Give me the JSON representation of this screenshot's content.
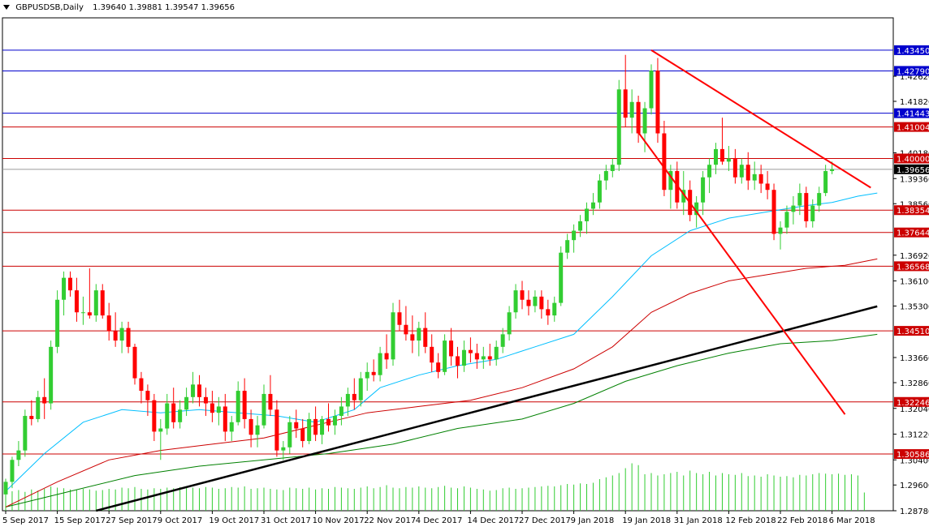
{
  "header": {
    "symbol": "GBPUSDSB,Daily",
    "ohlc": "1.39640 1.39881 1.39547 1.39656"
  },
  "chart_data": {
    "type": "candlestick",
    "symbol": "GBPUSDSB",
    "timeframe": "Daily",
    "ylim": [
      1.2878,
      1.4448
    ],
    "colors": {
      "bull": "#32cd32",
      "bear": "#ff0000",
      "ma_fast": "#00bfff",
      "ma_mid": "#cc0000",
      "ma_slow": "#008000",
      "volume": "#32cd32",
      "hline_blue": "#0000cd",
      "hline_red": "#cc0000",
      "trendline": "#000000",
      "channel": "#ff0000"
    },
    "y_ticks": [
      "1.42620",
      "1.41820",
      "1.40180",
      "1.39360",
      "1.38560",
      "1.36920",
      "1.36100",
      "1.35300",
      "1.33660",
      "1.32860",
      "1.32040",
      "1.31220",
      "1.30400",
      "1.29600",
      "1.28780"
    ],
    "x_ticks": [
      {
        "label": "5 Sep 2017",
        "i": 0
      },
      {
        "label": "15 Sep 2017",
        "i": 8
      },
      {
        "label": "27 Sep 2017",
        "i": 16
      },
      {
        "label": "9 Oct 2017",
        "i": 24
      },
      {
        "label": "19 Oct 2017",
        "i": 32
      },
      {
        "label": "31 Oct 2017",
        "i": 40
      },
      {
        "label": "10 Nov 2017",
        "i": 48
      },
      {
        "label": "22 Nov 2017",
        "i": 56
      },
      {
        "label": "4 Dec 2017",
        "i": 64
      },
      {
        "label": "14 Dec 2017",
        "i": 72
      },
      {
        "label": "27 Dec 2017",
        "i": 80
      },
      {
        "label": "9 Jan 2018",
        "i": 88
      },
      {
        "label": "19 Jan 2018",
        "i": 96
      },
      {
        "label": "31 Jan 2018",
        "i": 104
      },
      {
        "label": "12 Feb 2018",
        "i": 112
      },
      {
        "label": "22 Feb 2018",
        "i": 120
      },
      {
        "label": "6 Mar 2018",
        "i": 128
      }
    ],
    "levels": [
      {
        "value": 1.4345,
        "label": "1.43450",
        "kind": "blue"
      },
      {
        "value": 1.4279,
        "label": "1.42790",
        "kind": "blue"
      },
      {
        "value": 1.41443,
        "label": "1.41443",
        "kind": "blue"
      },
      {
        "value": 1.41004,
        "label": "1.41004",
        "kind": "red"
      },
      {
        "value": 1.4,
        "label": "1.40000",
        "kind": "red"
      },
      {
        "value": 1.38354,
        "label": "1.38354",
        "kind": "red"
      },
      {
        "value": 1.37644,
        "label": "1.37644",
        "kind": "red"
      },
      {
        "value": 1.36568,
        "label": "1.36568",
        "kind": "red"
      },
      {
        "value": 1.3451,
        "label": "1.34510",
        "kind": "red"
      },
      {
        "value": 1.32246,
        "label": "1.32246",
        "kind": "red"
      },
      {
        "value": 1.30586,
        "label": "1.30586",
        "kind": "red"
      }
    ],
    "current_price": {
      "value": 1.39656,
      "label": "1.39656"
    },
    "trendlines": [
      {
        "name": "uptrend",
        "kind": "trendline",
        "from": [
          14,
          1.2878
        ],
        "to": [
          135,
          1.3529
        ]
      },
      {
        "name": "resistance",
        "kind": "channel",
        "from": [
          100,
          1.4345
        ],
        "to": [
          134,
          1.3907
        ]
      },
      {
        "name": "channel-lower",
        "kind": "channel",
        "from": [
          98,
          1.4083
        ],
        "to": [
          130,
          1.3185
        ]
      }
    ],
    "candles": [
      [
        1.293,
        1.298,
        1.291,
        1.297
      ],
      [
        1.297,
        1.305,
        1.295,
        1.304
      ],
      [
        1.304,
        1.31,
        1.302,
        1.307
      ],
      [
        1.307,
        1.32,
        1.305,
        1.318
      ],
      [
        1.318,
        1.323,
        1.315,
        1.317
      ],
      [
        1.317,
        1.326,
        1.316,
        1.324
      ],
      [
        1.324,
        1.33,
        1.317,
        1.322
      ],
      [
        1.322,
        1.342,
        1.32,
        1.34
      ],
      [
        1.34,
        1.358,
        1.338,
        1.355
      ],
      [
        1.355,
        1.364,
        1.35,
        1.362
      ],
      [
        1.362,
        1.364,
        1.356,
        1.358
      ],
      [
        1.358,
        1.362,
        1.348,
        1.351
      ],
      [
        1.351,
        1.356,
        1.347,
        1.351
      ],
      [
        1.351,
        1.365,
        1.349,
        1.35
      ],
      [
        1.35,
        1.36,
        1.348,
        1.358
      ],
      [
        1.358,
        1.36,
        1.349,
        1.35
      ],
      [
        1.35,
        1.354,
        1.342,
        1.345
      ],
      [
        1.345,
        1.351,
        1.34,
        1.342
      ],
      [
        1.342,
        1.348,
        1.338,
        1.346
      ],
      [
        1.346,
        1.348,
        1.338,
        1.34
      ],
      [
        1.34,
        1.341,
        1.328,
        1.33
      ],
      [
        1.33,
        1.332,
        1.322,
        1.326
      ],
      [
        1.326,
        1.328,
        1.318,
        1.323
      ],
      [
        1.323,
        1.325,
        1.31,
        1.313
      ],
      [
        1.313,
        1.317,
        1.304,
        1.314
      ],
      [
        1.314,
        1.325,
        1.312,
        1.322
      ],
      [
        1.322,
        1.327,
        1.314,
        1.316
      ],
      [
        1.316,
        1.323,
        1.314,
        1.32
      ],
      [
        1.32,
        1.327,
        1.318,
        1.324
      ],
      [
        1.324,
        1.332,
        1.322,
        1.328
      ],
      [
        1.328,
        1.331,
        1.321,
        1.324
      ],
      [
        1.324,
        1.327,
        1.318,
        1.322
      ],
      [
        1.322,
        1.326,
        1.316,
        1.319
      ],
      [
        1.319,
        1.324,
        1.315,
        1.321
      ],
      [
        1.321,
        1.325,
        1.31,
        1.313
      ],
      [
        1.313,
        1.318,
        1.31,
        1.316
      ],
      [
        1.316,
        1.329,
        1.315,
        1.326
      ],
      [
        1.326,
        1.33,
        1.314,
        1.317
      ],
      [
        1.317,
        1.32,
        1.308,
        1.312
      ],
      [
        1.312,
        1.318,
        1.308,
        1.315
      ],
      [
        1.315,
        1.328,
        1.314,
        1.325
      ],
      [
        1.325,
        1.331,
        1.318,
        1.32
      ],
      [
        1.32,
        1.323,
        1.305,
        1.307
      ],
      [
        1.307,
        1.31,
        1.304,
        1.308
      ],
      [
        1.308,
        1.318,
        1.306,
        1.316
      ],
      [
        1.316,
        1.32,
        1.311,
        1.314
      ],
      [
        1.314,
        1.317,
        1.308,
        1.31
      ],
      [
        1.31,
        1.319,
        1.309,
        1.317
      ],
      [
        1.317,
        1.321,
        1.31,
        1.312
      ],
      [
        1.312,
        1.318,
        1.309,
        1.317
      ],
      [
        1.317,
        1.322,
        1.313,
        1.315
      ],
      [
        1.315,
        1.32,
        1.312,
        1.318
      ],
      [
        1.318,
        1.324,
        1.315,
        1.321
      ],
      [
        1.321,
        1.327,
        1.318,
        1.325
      ],
      [
        1.325,
        1.33,
        1.32,
        1.323
      ],
      [
        1.323,
        1.332,
        1.321,
        1.33
      ],
      [
        1.33,
        1.335,
        1.326,
        1.332
      ],
      [
        1.332,
        1.336,
        1.329,
        1.331
      ],
      [
        1.331,
        1.34,
        1.329,
        1.338
      ],
      [
        1.338,
        1.344,
        1.333,
        1.336
      ],
      [
        1.336,
        1.354,
        1.334,
        1.351
      ],
      [
        1.351,
        1.355,
        1.345,
        1.347
      ],
      [
        1.347,
        1.353,
        1.342,
        1.344
      ],
      [
        1.344,
        1.35,
        1.338,
        1.342
      ],
      [
        1.342,
        1.348,
        1.337,
        1.346
      ],
      [
        1.346,
        1.351,
        1.338,
        1.34
      ],
      [
        1.34,
        1.344,
        1.332,
        1.335
      ],
      [
        1.335,
        1.338,
        1.33,
        1.332
      ],
      [
        1.332,
        1.344,
        1.331,
        1.342
      ],
      [
        1.342,
        1.346,
        1.334,
        1.337
      ],
      [
        1.337,
        1.34,
        1.33,
        1.334
      ],
      [
        1.334,
        1.342,
        1.332,
        1.339
      ],
      [
        1.339,
        1.343,
        1.335,
        1.338
      ],
      [
        1.338,
        1.341,
        1.333,
        1.336
      ],
      [
        1.336,
        1.34,
        1.333,
        1.337
      ],
      [
        1.337,
        1.341,
        1.334,
        1.336
      ],
      [
        1.336,
        1.342,
        1.334,
        1.34
      ],
      [
        1.34,
        1.346,
        1.338,
        1.344
      ],
      [
        1.344,
        1.353,
        1.342,
        1.351
      ],
      [
        1.351,
        1.36,
        1.349,
        1.358
      ],
      [
        1.358,
        1.361,
        1.352,
        1.355
      ],
      [
        1.355,
        1.358,
        1.35,
        1.353
      ],
      [
        1.353,
        1.358,
        1.351,
        1.356
      ],
      [
        1.356,
        1.358,
        1.349,
        1.352
      ],
      [
        1.352,
        1.355,
        1.347,
        1.35
      ],
      [
        1.35,
        1.356,
        1.348,
        1.354
      ],
      [
        1.354,
        1.372,
        1.353,
        1.37
      ],
      [
        1.37,
        1.376,
        1.368,
        1.374
      ],
      [
        1.374,
        1.379,
        1.37,
        1.377
      ],
      [
        1.377,
        1.382,
        1.375,
        1.38
      ],
      [
        1.38,
        1.386,
        1.376,
        1.384
      ],
      [
        1.384,
        1.389,
        1.382,
        1.386
      ],
      [
        1.386,
        1.395,
        1.384,
        1.393
      ],
      [
        1.393,
        1.398,
        1.39,
        1.396
      ],
      [
        1.396,
        1.4,
        1.394,
        1.398
      ],
      [
        1.398,
        1.425,
        1.396,
        1.422
      ],
      [
        1.422,
        1.433,
        1.41,
        1.413
      ],
      [
        1.413,
        1.422,
        1.408,
        1.418
      ],
      [
        1.418,
        1.42,
        1.405,
        1.408
      ],
      [
        1.408,
        1.418,
        1.402,
        1.416
      ],
      [
        1.416,
        1.43,
        1.414,
        1.428
      ],
      [
        1.428,
        1.432,
        1.405,
        1.408
      ],
      [
        1.408,
        1.412,
        1.388,
        1.39
      ],
      [
        1.39,
        1.398,
        1.384,
        1.396
      ],
      [
        1.396,
        1.399,
        1.384,
        1.386
      ],
      [
        1.386,
        1.396,
        1.382,
        1.39
      ],
      [
        1.39,
        1.393,
        1.38,
        1.382
      ],
      [
        1.382,
        1.388,
        1.378,
        1.386
      ],
      [
        1.386,
        1.396,
        1.382,
        1.394
      ],
      [
        1.394,
        1.4,
        1.389,
        1.398
      ],
      [
        1.398,
        1.405,
        1.395,
        1.403
      ],
      [
        1.403,
        1.413,
        1.398,
        1.399
      ],
      [
        1.399,
        1.404,
        1.396,
        1.4
      ],
      [
        1.4,
        1.403,
        1.392,
        1.394
      ],
      [
        1.394,
        1.4,
        1.392,
        1.398
      ],
      [
        1.398,
        1.402,
        1.39,
        1.393
      ],
      [
        1.393,
        1.399,
        1.39,
        1.395
      ],
      [
        1.395,
        1.398,
        1.389,
        1.392
      ],
      [
        1.392,
        1.396,
        1.387,
        1.39
      ],
      [
        1.39,
        1.392,
        1.374,
        1.376
      ],
      [
        1.376,
        1.38,
        1.371,
        1.378
      ],
      [
        1.378,
        1.385,
        1.376,
        1.383
      ],
      [
        1.383,
        1.388,
        1.379,
        1.385
      ],
      [
        1.385,
        1.392,
        1.382,
        1.389
      ],
      [
        1.389,
        1.391,
        1.378,
        1.38
      ],
      [
        1.38,
        1.387,
        1.378,
        1.385
      ],
      [
        1.385,
        1.391,
        1.383,
        1.389
      ],
      [
        1.389,
        1.398,
        1.388,
        1.396
      ],
      [
        1.396,
        1.399,
        1.395,
        1.3966
      ]
    ],
    "volume": [
      0.3,
      0.32,
      0.34,
      0.31,
      0.35,
      0.33,
      0.36,
      0.4,
      0.38,
      0.37,
      0.35,
      0.34,
      0.36,
      0.35,
      0.33,
      0.34,
      0.36,
      0.35,
      0.38,
      0.37,
      0.39,
      0.36,
      0.35,
      0.37,
      0.36,
      0.38,
      0.37,
      0.39,
      0.4,
      0.38,
      0.37,
      0.39,
      0.38,
      0.36,
      0.37,
      0.39,
      0.38,
      0.4,
      0.36,
      0.37,
      0.38,
      0.36,
      0.35,
      0.34,
      0.38,
      0.37,
      0.36,
      0.38,
      0.35,
      0.37,
      0.36,
      0.39,
      0.38,
      0.37,
      0.36,
      0.38,
      0.4,
      0.37,
      0.39,
      0.42,
      0.38,
      0.37,
      0.39,
      0.38,
      0.4,
      0.38,
      0.37,
      0.39,
      0.41,
      0.38,
      0.37,
      0.4,
      0.38,
      0.36,
      0.35,
      0.33,
      0.34,
      0.37,
      0.38,
      0.36,
      0.37,
      0.38,
      0.39,
      0.4,
      0.41,
      0.4,
      0.42,
      0.44,
      0.43,
      0.45,
      0.44,
      0.46,
      0.52,
      0.55,
      0.58,
      0.62,
      0.7,
      0.78,
      0.75,
      0.6,
      0.62,
      0.58,
      0.6,
      0.62,
      0.64,
      0.58,
      0.66,
      0.62,
      0.6,
      0.64,
      0.58,
      0.62,
      0.6,
      0.59,
      0.62,
      0.57,
      0.58,
      0.56,
      0.6,
      0.58,
      0.56,
      0.57,
      0.55,
      0.59,
      0.58,
      0.6,
      0.62,
      0.61,
      0.6,
      0.61,
      0.59,
      0.6,
      0.58,
      0.3
    ],
    "ma_fast": [
      [
        0,
        1.294
      ],
      [
        6,
        1.306
      ],
      [
        12,
        1.316
      ],
      [
        18,
        1.32
      ],
      [
        24,
        1.319
      ],
      [
        30,
        1.32
      ],
      [
        36,
        1.319
      ],
      [
        42,
        1.318
      ],
      [
        48,
        1.316
      ],
      [
        54,
        1.32
      ],
      [
        58,
        1.327
      ],
      [
        64,
        1.331
      ],
      [
        70,
        1.334
      ],
      [
        76,
        1.336
      ],
      [
        82,
        1.34
      ],
      [
        88,
        1.344
      ],
      [
        94,
        1.356
      ],
      [
        100,
        1.369
      ],
      [
        106,
        1.377
      ],
      [
        112,
        1.381
      ],
      [
        118,
        1.383
      ],
      [
        124,
        1.385
      ],
      [
        128,
        1.386
      ],
      [
        132,
        1.388
      ],
      [
        135,
        1.389
      ]
    ],
    "ma_mid": [
      [
        0,
        1.289
      ],
      [
        8,
        1.297
      ],
      [
        16,
        1.304
      ],
      [
        24,
        1.307
      ],
      [
        32,
        1.309
      ],
      [
        40,
        1.311
      ],
      [
        48,
        1.315
      ],
      [
        56,
        1.319
      ],
      [
        64,
        1.321
      ],
      [
        72,
        1.323
      ],
      [
        80,
        1.327
      ],
      [
        88,
        1.333
      ],
      [
        94,
        1.34
      ],
      [
        100,
        1.351
      ],
      [
        106,
        1.357
      ],
      [
        112,
        1.361
      ],
      [
        118,
        1.363
      ],
      [
        124,
        1.365
      ],
      [
        130,
        1.366
      ],
      [
        135,
        1.368
      ]
    ],
    "ma_slow": [
      [
        0,
        1.289
      ],
      [
        10,
        1.294
      ],
      [
        20,
        1.299
      ],
      [
        30,
        1.302
      ],
      [
        40,
        1.304
      ],
      [
        50,
        1.306
      ],
      [
        60,
        1.309
      ],
      [
        70,
        1.314
      ],
      [
        80,
        1.317
      ],
      [
        88,
        1.322
      ],
      [
        96,
        1.329
      ],
      [
        104,
        1.334
      ],
      [
        112,
        1.338
      ],
      [
        120,
        1.341
      ],
      [
        128,
        1.342
      ],
      [
        135,
        1.344
      ]
    ]
  }
}
